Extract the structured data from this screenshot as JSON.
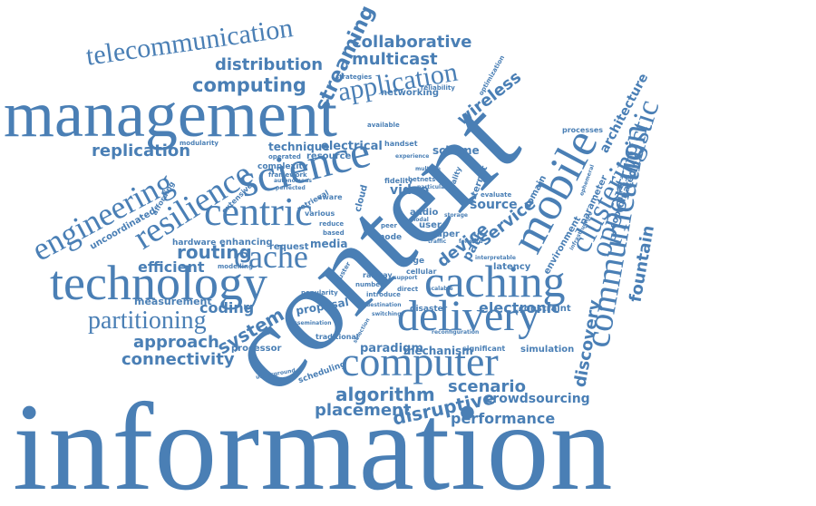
{
  "color": "#4a7fb5",
  "words": [
    {
      "key": "information",
      "text": "information"
    },
    {
      "key": "content",
      "text": "content"
    },
    {
      "key": "management",
      "text": "management"
    },
    {
      "key": "technology",
      "text": "technology"
    },
    {
      "key": "delivery",
      "text": "delivery"
    },
    {
      "key": "computer",
      "text": "computer"
    },
    {
      "key": "caching",
      "text": "caching"
    },
    {
      "key": "science",
      "text": "science"
    },
    {
      "key": "centric",
      "text": "centric"
    },
    {
      "key": "mobile",
      "text": "mobile"
    },
    {
      "key": "communication",
      "text": "communication"
    },
    {
      "key": "opportunistic",
      "text": "opportunistic"
    },
    {
      "key": "clustering",
      "text": "clustering"
    },
    {
      "key": "resilience",
      "text": "resilience"
    },
    {
      "key": "engineering",
      "text": "engineering"
    },
    {
      "key": "telecommunication",
      "text": "telecommunication"
    },
    {
      "key": "cache",
      "text": "cache"
    },
    {
      "key": "partitioning",
      "text": "partitioning"
    },
    {
      "key": "application",
      "text": "application"
    },
    {
      "key": "collaborative",
      "text": "collaborative"
    },
    {
      "key": "distribution",
      "text": "distribution"
    },
    {
      "key": "multicast",
      "text": "multicast"
    },
    {
      "key": "computing",
      "text": "computing"
    },
    {
      "key": "streaming",
      "text": "streaming"
    },
    {
      "key": "wireless",
      "text": "wireless"
    },
    {
      "key": "replication",
      "text": "replication"
    },
    {
      "key": "routing",
      "text": "routing"
    },
    {
      "key": "efficient",
      "text": "efficient"
    },
    {
      "key": "approach",
      "text": "approach"
    },
    {
      "key": "connectivity",
      "text": "connectivity"
    },
    {
      "key": "system",
      "text": "system"
    },
    {
      "key": "coding",
      "text": "coding"
    },
    {
      "key": "algorithm",
      "text": "algorithm"
    },
    {
      "key": "placement",
      "text": "placement"
    },
    {
      "key": "disruptive",
      "text": "disruptive"
    },
    {
      "key": "performance",
      "text": "performance"
    },
    {
      "key": "scenario",
      "text": "scenario"
    },
    {
      "key": "crowdsourcing",
      "text": "crowdsourcing"
    },
    {
      "key": "discovery",
      "text": "discovery"
    },
    {
      "key": "fountain",
      "text": "fountain"
    },
    {
      "key": "architecture",
      "text": "architecture"
    },
    {
      "key": "electronic",
      "text": "electronic"
    },
    {
      "key": "device",
      "text": "device"
    },
    {
      "key": "service",
      "text": "service"
    },
    {
      "key": "path",
      "text": "path"
    },
    {
      "key": "source",
      "text": "source"
    },
    {
      "key": "scheme",
      "text": "scheme"
    },
    {
      "key": "electrical",
      "text": "electrical"
    },
    {
      "key": "technique",
      "text": "technique"
    },
    {
      "key": "resource",
      "text": "resource"
    },
    {
      "key": "video",
      "text": "video"
    },
    {
      "key": "media",
      "text": "media"
    },
    {
      "key": "mechanism",
      "text": "mechanism"
    },
    {
      "key": "paradigm",
      "text": "paradigm"
    },
    {
      "key": "measurement",
      "text": "measurement"
    },
    {
      "key": "networking",
      "text": "networking"
    },
    {
      "key": "uncoordinated",
      "text": "uncoordinated"
    },
    {
      "key": "processor",
      "text": "processor"
    },
    {
      "key": "proposal",
      "text": "proposal"
    },
    {
      "key": "traditional",
      "text": "traditional"
    },
    {
      "key": "constraint",
      "text": "constraint"
    },
    {
      "key": "simulation",
      "text": "simulation"
    },
    {
      "key": "latency",
      "text": "latency"
    },
    {
      "key": "hardware",
      "text": "hardware"
    },
    {
      "key": "enhancing",
      "text": "enhancing"
    },
    {
      "key": "request",
      "text": "request"
    },
    {
      "key": "complexity",
      "text": "complexity"
    },
    {
      "key": "domain",
      "text": "domain"
    },
    {
      "key": "environment",
      "text": "environment"
    },
    {
      "key": "parameter",
      "text": "parameter"
    },
    {
      "key": "coordinated",
      "text": "coordinated"
    },
    {
      "key": "internet",
      "text": "internet"
    },
    {
      "key": "audio",
      "text": "audio"
    },
    {
      "key": "user",
      "text": "user"
    },
    {
      "key": "paper",
      "text": "paper"
    },
    {
      "key": "edge",
      "text": "edge"
    },
    {
      "key": "node",
      "text": "node"
    },
    {
      "key": "cellular",
      "text": "cellular"
    },
    {
      "key": "cloud",
      "text": "cloud"
    },
    {
      "key": "fidelity",
      "text": "fidelity"
    },
    {
      "key": "handset",
      "text": "handset"
    },
    {
      "key": "processes",
      "text": "processes"
    },
    {
      "key": "available",
      "text": "available"
    },
    {
      "key": "modularity",
      "text": "modularity"
    },
    {
      "key": "operated",
      "text": "operated"
    },
    {
      "key": "framework",
      "text": "framework"
    },
    {
      "key": "extensive",
      "text": "extensive"
    },
    {
      "key": "affording",
      "text": "affording"
    },
    {
      "key": "modelling",
      "text": "modelling"
    },
    {
      "key": "scheduling",
      "text": "scheduling"
    },
    {
      "key": "significant",
      "text": "significant"
    },
    {
      "key": "disaster",
      "text": "disaster"
    },
    {
      "key": "popularity",
      "text": "popularity"
    },
    {
      "key": "cluster",
      "text": "cluster"
    },
    {
      "key": "railway",
      "text": "railway"
    },
    {
      "key": "number",
      "text": "number"
    },
    {
      "key": "reliability",
      "text": "reliability"
    },
    {
      "key": "strategies",
      "text": "strategies"
    },
    {
      "key": "optimization",
      "text": "optimization"
    },
    {
      "key": "direct",
      "text": "direct"
    },
    {
      "key": "hetnets",
      "text": "hetnets"
    },
    {
      "key": "quality",
      "text": "quality"
    },
    {
      "key": "retrieval",
      "text": "retrieval"
    },
    {
      "key": "aware",
      "text": "aware"
    },
    {
      "key": "various",
      "text": "various"
    },
    {
      "key": "reduce",
      "text": "reduce"
    },
    {
      "key": "based",
      "text": "based"
    },
    {
      "key": "evaluate",
      "text": "evaluate"
    },
    {
      "key": "introduce",
      "text": "introduce"
    },
    {
      "key": "underground",
      "text": "underground"
    },
    {
      "key": "dissemination",
      "text": "dissemination"
    },
    {
      "key": "selection",
      "text": "selection"
    },
    {
      "key": "scalable",
      "text": "scalable"
    },
    {
      "key": "support",
      "text": "support"
    },
    {
      "key": "experience",
      "text": "experience"
    },
    {
      "key": "particular",
      "text": "particular"
    },
    {
      "key": "multiple",
      "text": "multiple"
    },
    {
      "key": "nodal",
      "text": "nodal"
    },
    {
      "key": "forward",
      "text": "forward"
    },
    {
      "key": "storage",
      "text": "storage"
    },
    {
      "key": "traffic",
      "text": "traffic"
    },
    {
      "key": "peer",
      "text": "peer"
    },
    {
      "key": "interpretable",
      "text": "interpretable"
    },
    {
      "key": "ephemeral",
      "text": "ephemeral"
    },
    {
      "key": "infrastructure",
      "text": "infrastructure"
    },
    {
      "key": "destination",
      "text": "destination"
    },
    {
      "key": "reconfiguration",
      "text": "reconfiguration"
    },
    {
      "key": "switching",
      "text": "switching"
    },
    {
      "key": "perfected",
      "text": "perfected"
    },
    {
      "key": "autonomous",
      "text": "autonomous"
    }
  ]
}
